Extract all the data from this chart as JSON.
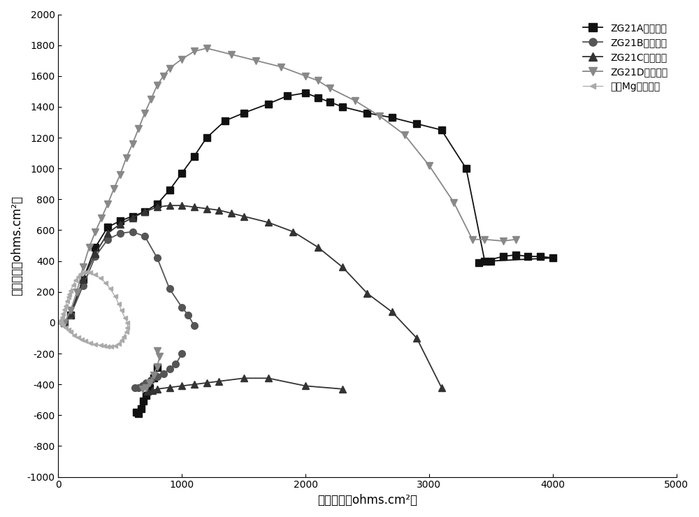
{
  "ZG21A_x": [
    50,
    100,
    200,
    300,
    400,
    500,
    600,
    700,
    800,
    900,
    1000,
    1100,
    1200,
    1350,
    1500,
    1700,
    1850,
    2000,
    2100,
    2200,
    2300,
    2500,
    2700,
    2900,
    3100,
    3300,
    3450,
    3600,
    3700,
    3800,
    3900,
    4000,
    3500,
    3400,
    800,
    770,
    740,
    710,
    690,
    670,
    650,
    630
  ],
  "ZG21A_y": [
    0,
    50,
    280,
    490,
    620,
    660,
    690,
    720,
    770,
    860,
    970,
    1080,
    1200,
    1310,
    1360,
    1420,
    1470,
    1490,
    1460,
    1430,
    1400,
    1360,
    1330,
    1290,
    1250,
    1000,
    400,
    430,
    440,
    430,
    430,
    420,
    400,
    390,
    -290,
    -360,
    -420,
    -470,
    -510,
    -560,
    -590,
    -580
  ],
  "ZG21A_split": 34,
  "ZG21B_x": [
    50,
    100,
    200,
    300,
    400,
    500,
    600,
    700,
    800,
    900,
    1000,
    1050,
    1100,
    1000,
    950,
    900,
    850,
    800,
    750,
    710,
    680,
    650,
    620
  ],
  "ZG21B_y": [
    0,
    50,
    240,
    430,
    540,
    580,
    590,
    560,
    420,
    220,
    100,
    50,
    -20,
    -200,
    -270,
    -300,
    -330,
    -350,
    -370,
    -390,
    -410,
    -420,
    -420
  ],
  "ZG21B_split": 13,
  "ZG21C_x": [
    50,
    100,
    200,
    300,
    400,
    500,
    600,
    700,
    800,
    900,
    1000,
    1100,
    1200,
    1300,
    1400,
    1500,
    1700,
    1900,
    2100,
    2300,
    2500,
    2700,
    2900,
    3100,
    2300,
    2000,
    1700,
    1500,
    1300,
    1200,
    1100,
    1000,
    900,
    800,
    760,
    720
  ],
  "ZG21C_y": [
    0,
    60,
    280,
    450,
    580,
    640,
    680,
    720,
    750,
    760,
    760,
    750,
    740,
    730,
    710,
    690,
    650,
    590,
    490,
    360,
    190,
    70,
    -100,
    -420,
    -430,
    -410,
    -360,
    -360,
    -380,
    -390,
    -400,
    -410,
    -420,
    -430,
    -440,
    -445
  ],
  "ZG21C_split": 24,
  "ZG21D_x": [
    50,
    100,
    150,
    200,
    250,
    300,
    350,
    400,
    450,
    500,
    550,
    600,
    650,
    700,
    750,
    800,
    850,
    900,
    1000,
    1100,
    1200,
    1400,
    1600,
    1800,
    2000,
    2100,
    2200,
    2400,
    2600,
    2800,
    3000,
    3200,
    3350,
    3450,
    3600,
    3700,
    800,
    820,
    800,
    770,
    740,
    710,
    680
  ],
  "ZG21D_y": [
    0,
    80,
    200,
    360,
    490,
    590,
    680,
    770,
    870,
    960,
    1070,
    1160,
    1260,
    1360,
    1450,
    1540,
    1600,
    1650,
    1710,
    1760,
    1780,
    1740,
    1700,
    1660,
    1600,
    1570,
    1520,
    1440,
    1340,
    1220,
    1020,
    780,
    540,
    540,
    530,
    540,
    -180,
    -220,
    -285,
    -340,
    -390,
    -420,
    -430
  ],
  "ZG21D_split": 36,
  "MgPure_x": [
    5,
    10,
    15,
    20,
    30,
    40,
    50,
    60,
    70,
    80,
    90,
    100,
    120,
    140,
    160,
    180,
    200,
    230,
    260,
    300,
    340,
    380,
    420,
    460,
    490,
    510,
    540,
    560,
    560,
    550,
    530,
    510,
    490,
    460,
    430,
    400,
    370,
    340,
    300,
    260,
    220,
    190,
    160,
    130,
    100,
    80,
    60,
    40,
    25
  ],
  "MgPure_y": [
    0,
    5,
    10,
    18,
    35,
    60,
    85,
    110,
    140,
    165,
    185,
    210,
    245,
    275,
    300,
    315,
    325,
    330,
    325,
    310,
    290,
    260,
    220,
    170,
    120,
    80,
    30,
    0,
    -30,
    -60,
    -90,
    -115,
    -135,
    -150,
    -155,
    -155,
    -150,
    -145,
    -140,
    -130,
    -120,
    -110,
    -95,
    -80,
    -60,
    -45,
    -30,
    -18,
    -8
  ],
  "color_A": "#111111",
  "color_B": "#555555",
  "color_C": "#333333",
  "color_D": "#888888",
  "color_Mg": "#aaaaaa",
  "label_A": "ZG21A（铸态）",
  "label_B": "ZG21B（铸态）",
  "label_C": "ZG21C（铸态）",
  "label_D": "ZG21D（铸态）",
  "label_Mg": "高绯Mg（铸态）",
  "xlabel": "阻抗实部（ohms.cm²）",
  "ylabel": "阻抗虚部（ohms.cm²）",
  "xlim": [
    0,
    5000
  ],
  "ylim": [
    -1000,
    2000
  ],
  "xticks": [
    0,
    1000,
    2000,
    3000,
    4000,
    5000
  ],
  "yticks": [
    -1000,
    -800,
    -600,
    -400,
    -200,
    0,
    200,
    400,
    600,
    800,
    1000,
    1200,
    1400,
    1600,
    1800,
    2000
  ]
}
